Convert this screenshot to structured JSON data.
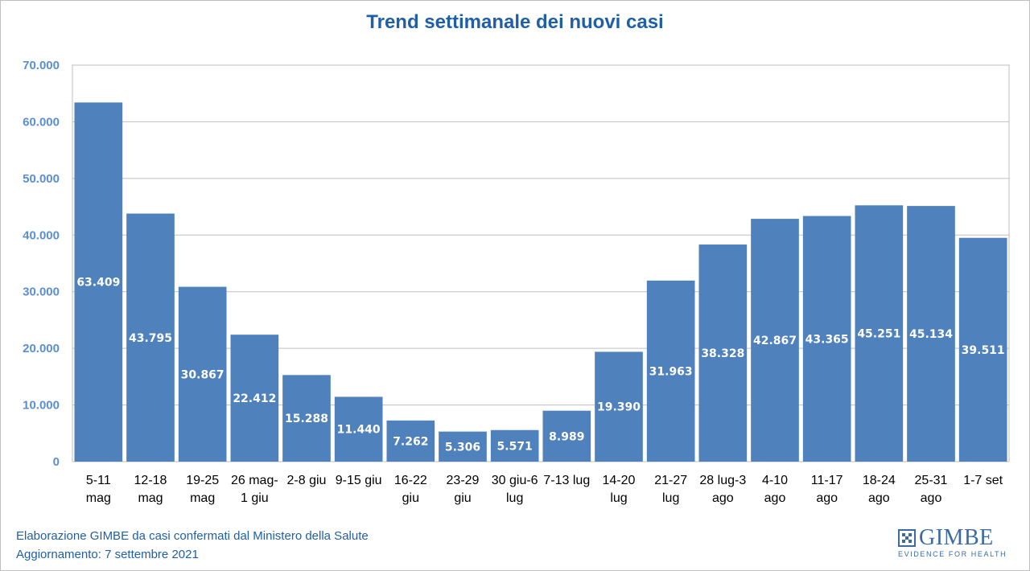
{
  "chart_data": {
    "type": "bar",
    "title": "Trend settimanale dei nuovi casi",
    "categories": [
      [
        "5-11",
        "mag"
      ],
      [
        "12-18",
        "mag"
      ],
      [
        "19-25",
        "mag"
      ],
      [
        "26 mag-",
        "1 giu"
      ],
      [
        "2-8 giu"
      ],
      [
        "9-15 giu"
      ],
      [
        "16-22",
        "giu"
      ],
      [
        "23-29",
        "giu"
      ],
      [
        "30 giu-6",
        "lug"
      ],
      [
        "7-13 lug"
      ],
      [
        "14-20",
        "lug"
      ],
      [
        "21-27",
        "lug"
      ],
      [
        "28 lug-3",
        "ago"
      ],
      [
        "4-10",
        "ago"
      ],
      [
        "11-17",
        "ago"
      ],
      [
        "18-24",
        "ago"
      ],
      [
        "25-31",
        "ago"
      ],
      [
        "1-7 set"
      ]
    ],
    "values": [
      63409,
      43795,
      30867,
      22412,
      15288,
      11440,
      7262,
      5306,
      5571,
      8989,
      19390,
      31963,
      38328,
      42867,
      43365,
      45251,
      45134,
      39511
    ],
    "data_labels": [
      "63.409",
      "43.795",
      "30.867",
      "22.412",
      "15.288",
      "11.440",
      "7.262",
      "5.306",
      "5.571",
      "8.989",
      "19.390",
      "31.963",
      "38.328",
      "42.867",
      "43.365",
      "45.251",
      "45.134",
      "39.511"
    ],
    "ylim": [
      0,
      70000
    ],
    "yticks": [
      0,
      10000,
      20000,
      30000,
      40000,
      50000,
      60000,
      70000
    ],
    "ytick_labels": [
      "0",
      "10.000",
      "20.000",
      "30.000",
      "40.000",
      "50.000",
      "60.000",
      "70.000"
    ],
    "grid": true,
    "bar_color": "#4f81bd"
  },
  "footer": {
    "line1": "Elaborazione GIMBE da casi confermati dal Ministero della Salute",
    "line2": "Aggiornamento: 7 settembre 2021"
  },
  "logo": {
    "name": "GIMBE",
    "tagline": "EVIDENCE FOR HEALTH"
  },
  "colors": {
    "title": "#1f5fa8",
    "axis_labels": "#5b8fd0"
  }
}
